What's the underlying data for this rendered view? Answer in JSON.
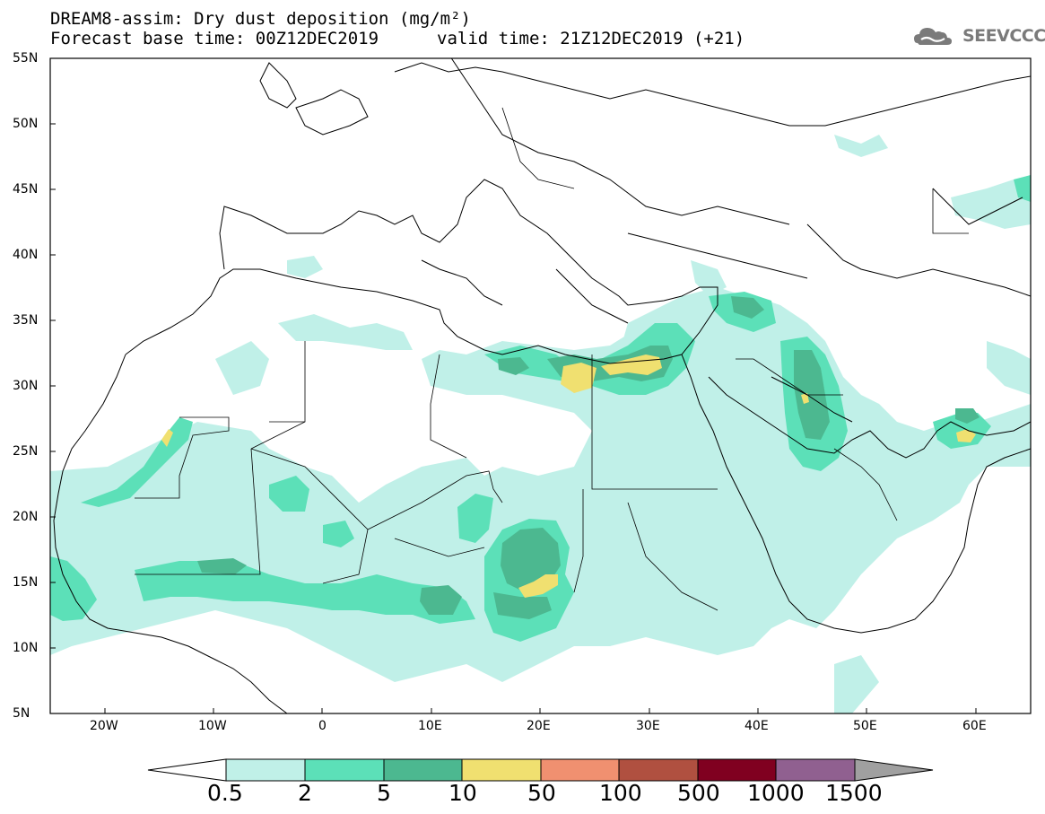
{
  "header": {
    "title": "DREAM8-assim: Dry dust deposition (mg/m²)",
    "base_time": "Forecast base time: 00Z12DEC2019",
    "valid_time": "valid time: 21Z12DEC2019 (+21)",
    "logo_text": "SEEVCCC"
  },
  "map": {
    "lat_range": [
      5,
      55
    ],
    "lon_range": [
      -25,
      65
    ],
    "lat_labels": [
      "5N",
      "10N",
      "15N",
      "20N",
      "25N",
      "30N",
      "35N",
      "40N",
      "45N",
      "50N",
      "55N"
    ],
    "lon_labels": [
      "20W",
      "10W",
      "0",
      "10E",
      "20E",
      "30E",
      "40E",
      "50E",
      "60E"
    ]
  },
  "colorbar": {
    "levels": [
      "0.5",
      "2",
      "5",
      "10",
      "50",
      "100",
      "500",
      "1000",
      "1500"
    ],
    "colors": [
      "#c0f0e8",
      "#5ce0b8",
      "#4cb890",
      "#f0e070",
      "#f09070",
      "#b05040",
      "#800020",
      "#906090",
      "#a0a0a0"
    ]
  }
}
